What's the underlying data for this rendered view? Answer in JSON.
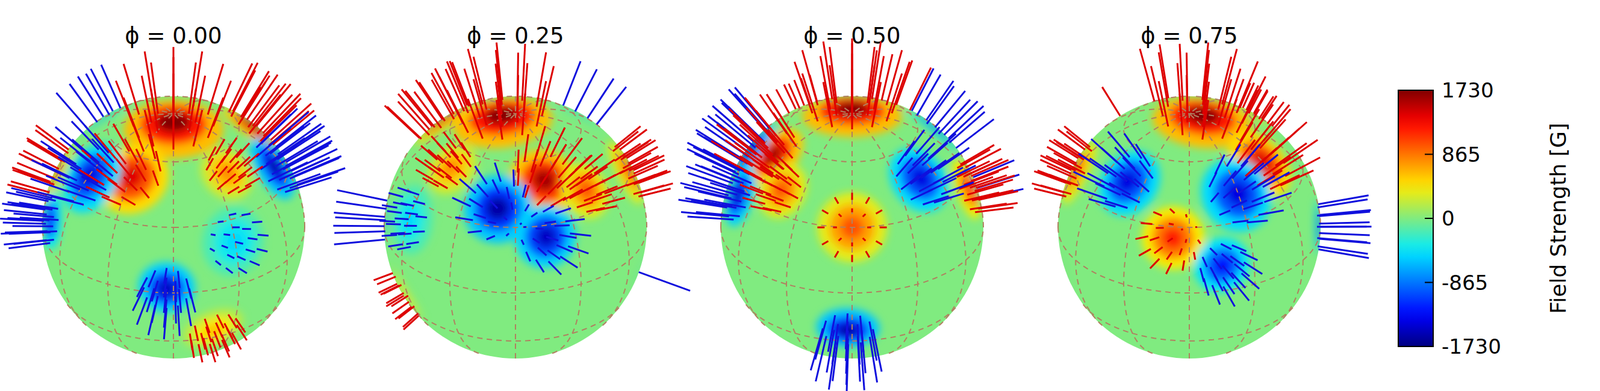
{
  "chart_data": {
    "type": "surface_map",
    "panels": [
      {
        "title": "ϕ = 0.00",
        "phase": 0.0
      },
      {
        "title": "ϕ = 0.25",
        "phase": 0.25
      },
      {
        "title": "ϕ = 0.50",
        "phase": 0.5
      },
      {
        "title": "ϕ = 0.75",
        "phase": 0.75
      }
    ],
    "spots": [
      {
        "lat": 84,
        "lon": 0,
        "field": 1730,
        "radius": 16
      },
      {
        "lat": 50,
        "lon": 330,
        "field": 1400,
        "radius": 12
      },
      {
        "lat": 42,
        "lon": 300,
        "field": -1400,
        "radius": 12
      },
      {
        "lat": 50,
        "lon": 110,
        "field": 1600,
        "radius": 11
      },
      {
        "lat": 38,
        "lon": 80,
        "field": -1600,
        "radius": 11
      },
      {
        "lat": 25,
        "lon": 105,
        "field": -1500,
        "radius": 10
      },
      {
        "lat": 30,
        "lon": 180,
        "field": 1000,
        "radius": 11
      },
      {
        "lat": -22,
        "lon": 178,
        "field": -1600,
        "radius": 10
      },
      {
        "lat": 45,
        "lon": 228,
        "field": -1400,
        "radius": 11
      },
      {
        "lat": 40,
        "lon": 135,
        "field": 1000,
        "radius": 9
      },
      {
        "lat": 25,
        "lon": 262,
        "field": 1200,
        "radius": 10
      },
      {
        "lat": 12,
        "lon": 285,
        "field": -1300,
        "radius": 9
      },
      {
        "lat": 2,
        "lon": 357,
        "field": -1500,
        "radius": 9
      },
      {
        "lat": -25,
        "lon": 20,
        "field": 600,
        "radius": 10
      },
      {
        "lat": 20,
        "lon": 30,
        "field": -500,
        "radius": 11
      },
      {
        "lat": 50,
        "lon": 40,
        "field": 800,
        "radius": 9
      }
    ],
    "colorbar": {
      "label": "Field Strength [G]",
      "range": [
        -1730,
        1730
      ],
      "ticks": [
        1730,
        865,
        0,
        -865,
        -1730
      ]
    },
    "grid": true
  }
}
